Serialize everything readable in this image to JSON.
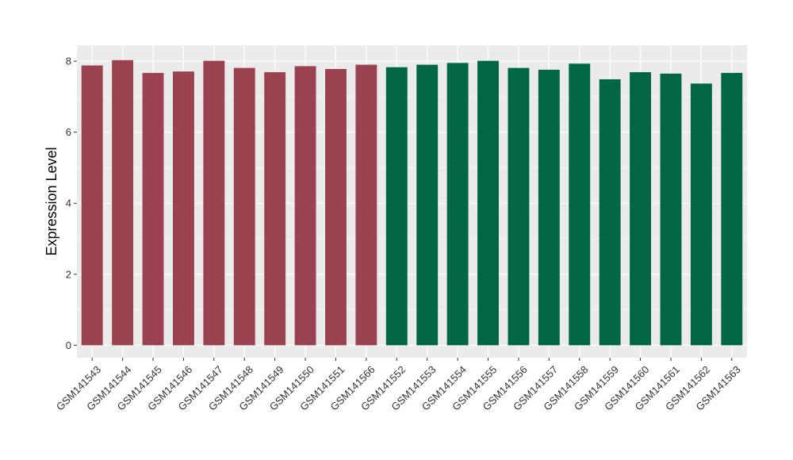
{
  "chart_data": {
    "type": "bar",
    "title": "",
    "xlabel": "",
    "ylabel": "Expression Level",
    "ylim": [
      -0.35,
      8.45
    ],
    "yticks": [
      0,
      2,
      4,
      6,
      8
    ],
    "grid": true,
    "panel_background": "#EBEBEB",
    "grid_color": "#FFFFFF",
    "categories": [
      "GSM141543",
      "GSM141544",
      "GSM141545",
      "GSM141546",
      "GSM141547",
      "GSM141548",
      "GSM141549",
      "GSM141550",
      "GSM141551",
      "GSM141566",
      "GSM141552",
      "GSM141553",
      "GSM141554",
      "GSM141555",
      "GSM141556",
      "GSM141557",
      "GSM141558",
      "GSM141559",
      "GSM141560",
      "GSM141561",
      "GSM141562",
      "GSM141563"
    ],
    "values": [
      7.88,
      8.03,
      7.67,
      7.71,
      8.01,
      7.81,
      7.69,
      7.86,
      7.78,
      7.9,
      7.83,
      7.9,
      7.95,
      8.01,
      7.81,
      7.76,
      7.93,
      7.49,
      7.69,
      7.65,
      7.37,
      7.67
    ],
    "bar_colors": [
      "#9A4250",
      "#9A4250",
      "#9A4250",
      "#9A4250",
      "#9A4250",
      "#9A4250",
      "#9A4250",
      "#9A4250",
      "#9A4250",
      "#9A4250",
      "#006644",
      "#006644",
      "#006644",
      "#006644",
      "#006644",
      "#006644",
      "#006644",
      "#006644",
      "#006644",
      "#006644",
      "#006644",
      "#006644"
    ]
  }
}
